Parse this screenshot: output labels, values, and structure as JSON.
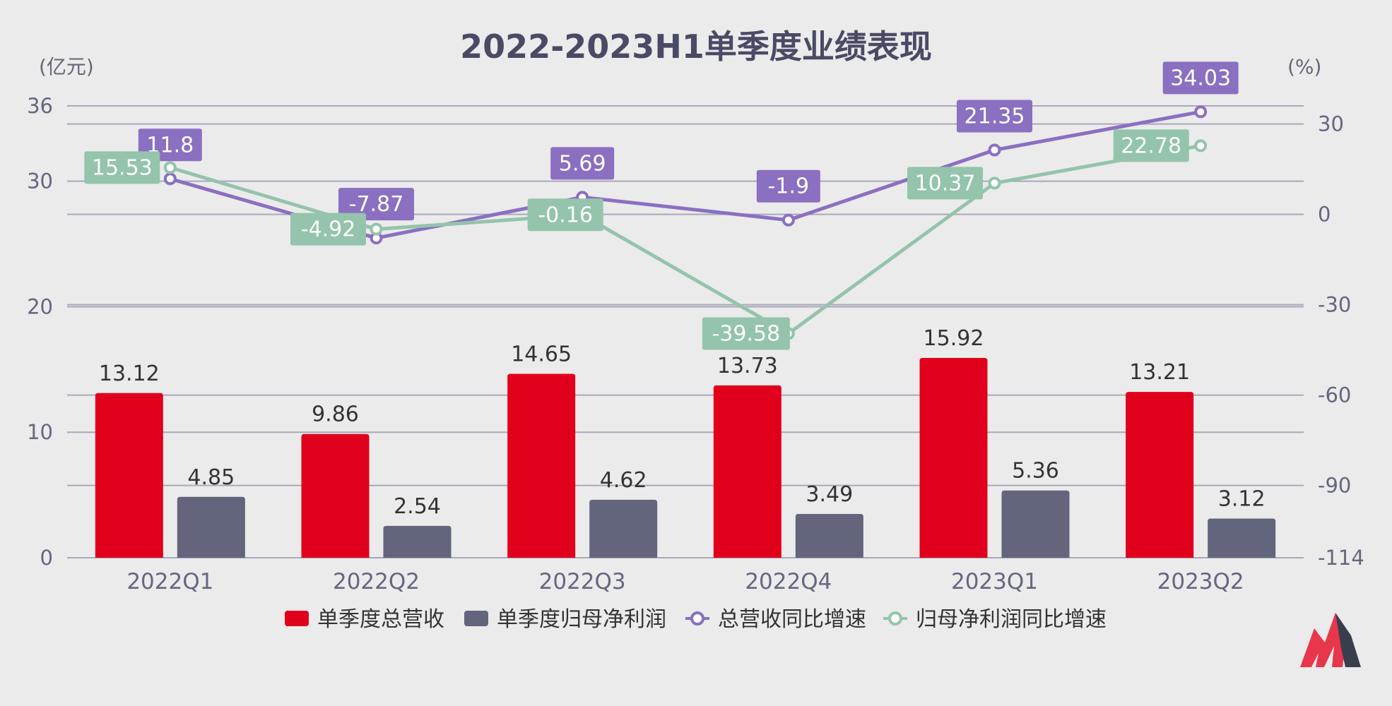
{
  "chart_data": {
    "type": "bar",
    "title": "2022-2023H1单季度业绩表现",
    "left_unit": "(亿元)",
    "right_unit": "(%)",
    "categories": [
      "2022Q1",
      "2022Q2",
      "2022Q3",
      "2022Q4",
      "2023Q1",
      "2023Q2"
    ],
    "left_axis": {
      "ticks": [
        "0",
        "10",
        "20",
        "30",
        "36"
      ],
      "ylim": [
        0,
        36
      ]
    },
    "right_axis": {
      "ticks": [
        "30",
        "0",
        "-30",
        "-60",
        "-90",
        "-114"
      ],
      "ylim": [
        -114,
        36
      ]
    },
    "series": [
      {
        "name": "单季度总营收",
        "kind": "bar",
        "axis": "left",
        "color": "#e0001b",
        "values": [
          13.12,
          9.86,
          14.65,
          13.73,
          15.92,
          13.21
        ],
        "labels": [
          "13.12",
          "9.86",
          "14.65",
          "13.73",
          "15.92",
          "13.21"
        ]
      },
      {
        "name": "单季度归母净利润",
        "kind": "bar",
        "axis": "left",
        "color": "#62657b",
        "values": [
          4.85,
          2.54,
          4.62,
          3.49,
          5.36,
          3.12
        ],
        "labels": [
          "4.85",
          "2.54",
          "4.62",
          "3.49",
          "5.36",
          "3.12"
        ]
      },
      {
        "name": "总营收同比增速",
        "kind": "line",
        "axis": "right",
        "color": "#8b6fc1",
        "values": [
          11.8,
          -7.87,
          5.69,
          -1.9,
          21.35,
          34.03
        ],
        "labels": [
          "11.8",
          "-7.87",
          "5.69",
          "-1.9",
          "21.35",
          "34.03"
        ]
      },
      {
        "name": "归母净利润同比增速",
        "kind": "line",
        "axis": "right",
        "color": "#94c4ab",
        "values": [
          15.53,
          -4.92,
          -0.16,
          -39.58,
          10.37,
          22.78
        ],
        "labels": [
          "15.53",
          "-4.92",
          "-0.16",
          "-39.58",
          "10.37",
          "22.78"
        ]
      }
    ],
    "legend": "bottom",
    "grid": true
  },
  "logo": {
    "colors": [
      "#e8364a",
      "#3a3d4c"
    ]
  }
}
